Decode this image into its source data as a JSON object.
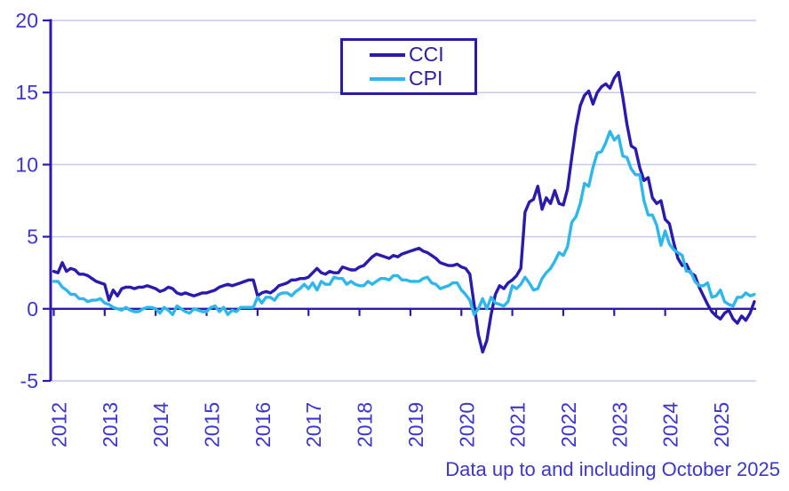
{
  "chart_data": {
    "type": "line",
    "title": "",
    "xlabel": "",
    "ylabel": "",
    "x_unit": "month",
    "x_start": "2012-01",
    "x_end": "2025-10",
    "x_tick_years": [
      2012,
      2013,
      2014,
      2015,
      2016,
      2017,
      2018,
      2019,
      2020,
      2021,
      2022,
      2023,
      2024,
      2025
    ],
    "y_ticks": [
      20,
      15,
      10,
      5,
      0,
      -5
    ],
    "ylim": [
      -5,
      20
    ],
    "grid": true,
    "legend_position": "top-center",
    "axis_color": "#2a1aad",
    "grid_color": "#c9c9f0",
    "label_color": "#3b36cc",
    "footnote": "Data up to and including October 2025",
    "series": [
      {
        "name": "CCI",
        "color": "#2a1aad",
        "values": [
          2.6,
          2.5,
          3.2,
          2.6,
          2.8,
          2.7,
          2.4,
          2.4,
          2.3,
          2.1,
          1.9,
          1.8,
          1.7,
          0.6,
          1.3,
          0.9,
          1.4,
          1.5,
          1.5,
          1.4,
          1.5,
          1.5,
          1.6,
          1.5,
          1.4,
          1.2,
          1.3,
          1.5,
          1.4,
          1.1,
          1.0,
          1.1,
          1.0,
          0.9,
          1.0,
          1.1,
          1.1,
          1.2,
          1.3,
          1.5,
          1.6,
          1.7,
          1.6,
          1.7,
          1.8,
          1.9,
          2.0,
          2.0,
          0.9,
          1.1,
          1.2,
          1.1,
          1.3,
          1.6,
          1.7,
          1.8,
          2.0,
          2.0,
          2.1,
          2.1,
          2.2,
          2.5,
          2.8,
          2.5,
          2.4,
          2.6,
          2.5,
          2.5,
          2.9,
          2.8,
          2.7,
          2.7,
          2.9,
          3.0,
          3.3,
          3.6,
          3.8,
          3.7,
          3.6,
          3.5,
          3.7,
          3.6,
          3.8,
          3.9,
          4.0,
          4.1,
          4.2,
          4.0,
          3.9,
          3.7,
          3.5,
          3.2,
          3.1,
          3.0,
          3.0,
          3.1,
          2.9,
          2.8,
          2.4,
          0.3,
          -1.8,
          -3.0,
          -2.2,
          -0.4,
          1.0,
          1.6,
          1.4,
          1.8,
          2.0,
          2.3,
          2.8,
          6.7,
          7.4,
          7.6,
          8.5,
          6.9,
          7.7,
          7.3,
          8.2,
          7.3,
          7.2,
          8.3,
          10.5,
          12.6,
          14.1,
          14.8,
          15.1,
          14.2,
          15.0,
          15.4,
          15.6,
          15.3,
          16.0,
          16.4,
          14.7,
          12.8,
          11.3,
          11.1,
          9.8,
          8.9,
          9.1,
          7.7,
          7.3,
          7.5,
          6.2,
          5.9,
          4.6,
          3.5,
          3.0,
          3.1,
          2.5,
          2.3,
          1.5,
          0.9,
          0.3,
          -0.2,
          -0.5,
          -0.7,
          -0.3,
          -0.1,
          -0.7,
          -1.0,
          -0.5,
          -0.8,
          -0.3,
          0.5
        ]
      },
      {
        "name": "CPI",
        "color": "#2fb7ea",
        "values": [
          1.9,
          1.9,
          1.5,
          1.3,
          1.0,
          1.0,
          0.7,
          0.7,
          0.5,
          0.6,
          0.6,
          0.7,
          0.4,
          0.3,
          0.1,
          0.0,
          -0.1,
          0.1,
          -0.1,
          -0.2,
          -0.2,
          0.0,
          0.1,
          0.1,
          0.0,
          -0.3,
          0.1,
          -0.1,
          -0.4,
          0.2,
          0.0,
          -0.2,
          -0.3,
          0.0,
          -0.1,
          -0.2,
          -0.2,
          0.1,
          0.2,
          -0.2,
          0.1,
          -0.4,
          -0.1,
          -0.2,
          0.1,
          0.1,
          0.1,
          0.1,
          0.8,
          0.4,
          0.8,
          0.8,
          0.6,
          1.0,
          1.1,
          1.1,
          0.9,
          1.2,
          1.4,
          1.7,
          1.4,
          1.8,
          1.3,
          1.9,
          1.7,
          1.7,
          2.2,
          2.1,
          2.1,
          1.7,
          1.9,
          1.7,
          1.6,
          1.6,
          1.9,
          1.7,
          1.9,
          2.1,
          2.1,
          2.0,
          2.3,
          2.3,
          2.0,
          2.0,
          1.9,
          1.9,
          1.9,
          2.1,
          2.2,
          1.8,
          1.7,
          1.4,
          1.5,
          1.6,
          1.8,
          1.8,
          1.3,
          1.0,
          0.6,
          -0.4,
          0.0,
          0.7,
          0.0,
          0.8,
          0.4,
          0.3,
          0.2,
          0.5,
          1.6,
          1.4,
          1.7,
          2.2,
          1.8,
          1.3,
          1.4,
          2.1,
          2.5,
          2.8,
          3.3,
          3.9,
          3.7,
          4.3,
          6.0,
          6.4,
          7.3,
          8.7,
          8.5,
          9.8,
          10.8,
          10.9,
          11.5,
          12.3,
          11.7,
          12.0,
          10.6,
          10.5,
          9.7,
          9.3,
          9.3,
          7.5,
          6.5,
          6.5,
          5.8,
          4.4,
          5.4,
          4.5,
          4.1,
          3.9,
          3.7,
          2.6,
          2.6,
          1.9,
          1.6,
          1.6,
          1.8,
          0.8,
          0.9,
          1.3,
          0.5,
          0.3,
          0.2,
          0.8,
          0.8,
          1.1,
          0.9,
          1.0
        ]
      }
    ]
  }
}
